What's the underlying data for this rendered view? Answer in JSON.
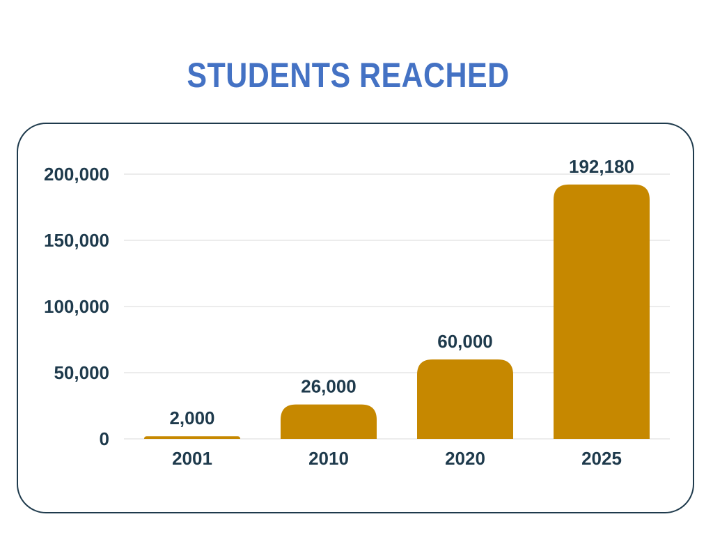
{
  "colors": {
    "title": "#4472c4",
    "bar": "#c68800",
    "text": "#1e3a4c",
    "grid": "#d9d9d9"
  },
  "chart_data": {
    "type": "bar",
    "title": "STUDENTS REACHED",
    "categories": [
      "2001",
      "2010",
      "2020",
      "2025"
    ],
    "values": [
      2000,
      26000,
      60000,
      192180
    ],
    "data_labels": [
      "2,000",
      "26,000",
      "60,000",
      "192,180"
    ],
    "y_ticks": [
      0,
      50000,
      100000,
      150000,
      200000
    ],
    "y_tick_labels": [
      "0",
      "50,000",
      "100,000",
      "150,000",
      "200,000"
    ],
    "ylim": [
      0,
      200000
    ],
    "grid": true,
    "legend": "none",
    "xlabel": "",
    "ylabel": ""
  }
}
